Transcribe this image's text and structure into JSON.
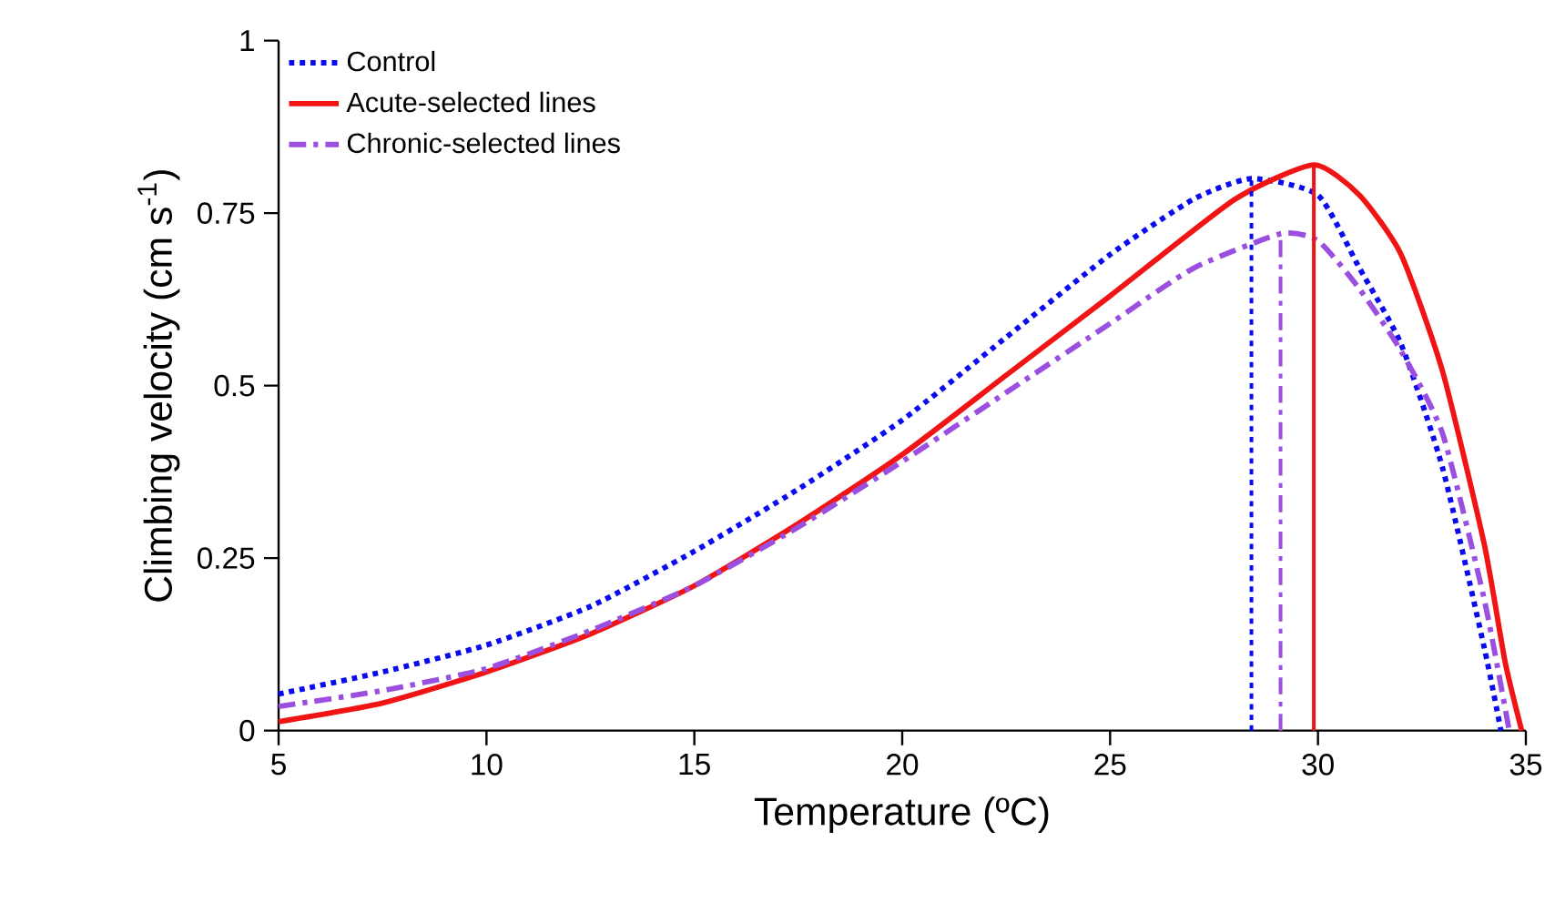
{
  "chart_data": {
    "type": "line",
    "xlabel": "Temperature (ºC)",
    "ylabel": "Climbing velocity (cm s$^{-1}$)",
    "xlim": [
      5,
      35
    ],
    "xticks": [
      5,
      10,
      15,
      20,
      25,
      30,
      35
    ],
    "ylim": [
      0,
      1
    ],
    "yticks": [
      0,
      0.25,
      0.5,
      0.75,
      1
    ],
    "legend": "top left",
    "grid": false,
    "series": [
      {
        "name": "Control",
        "color": "#0a0aee",
        "line_style": "dotted",
        "x": [
          5,
          7.5,
          10,
          12.5,
          15,
          17.5,
          20,
          22.5,
          25,
          27,
          28.4,
          30,
          31,
          32,
          33,
          34,
          34.4
        ],
        "values": [
          0.053,
          0.085,
          0.124,
          0.18,
          0.26,
          0.35,
          0.45,
          0.57,
          0.69,
          0.77,
          0.8,
          0.776,
          0.67,
          0.56,
          0.38,
          0.12,
          0
        ]
      },
      {
        "name": "Acute-selected lines",
        "color": "#f01414",
        "line_style": "solid",
        "x": [
          5,
          7.5,
          10,
          12.5,
          15,
          17.5,
          20,
          22.5,
          25,
          28,
          29.9,
          31,
          32,
          33,
          34,
          34.5,
          34.9
        ],
        "values": [
          0.013,
          0.04,
          0.085,
          0.14,
          0.21,
          0.3,
          0.4,
          0.515,
          0.63,
          0.77,
          0.82,
          0.776,
          0.69,
          0.52,
          0.27,
          0.1,
          0
        ]
      },
      {
        "name": "Chronic-selected lines",
        "color": "#9b4fe0",
        "line_style": "dashdot",
        "x": [
          5,
          7.5,
          10,
          12.5,
          15,
          17.5,
          20,
          22.5,
          25,
          27,
          29.1,
          30,
          31,
          32,
          33,
          34,
          34.6
        ],
        "values": [
          0.035,
          0.058,
          0.09,
          0.145,
          0.21,
          0.295,
          0.39,
          0.49,
          0.59,
          0.67,
          0.72,
          0.71,
          0.64,
          0.55,
          0.43,
          0.19,
          0
        ]
      },
      {
        "color": "#0a0aee",
        "line_style": "dotted",
        "x": [
          28.4,
          28.4
        ],
        "values": [
          0,
          0.8
        ]
      },
      {
        "color": "#9b4fe0",
        "line_style": "dashdot",
        "x": [
          29.1,
          29.1
        ],
        "values": [
          0,
          0.72
        ]
      },
      {
        "color": "#f01414",
        "line_style": "solid",
        "x": [
          29.9,
          29.9
        ],
        "values": [
          0,
          0.82
        ]
      }
    ]
  }
}
